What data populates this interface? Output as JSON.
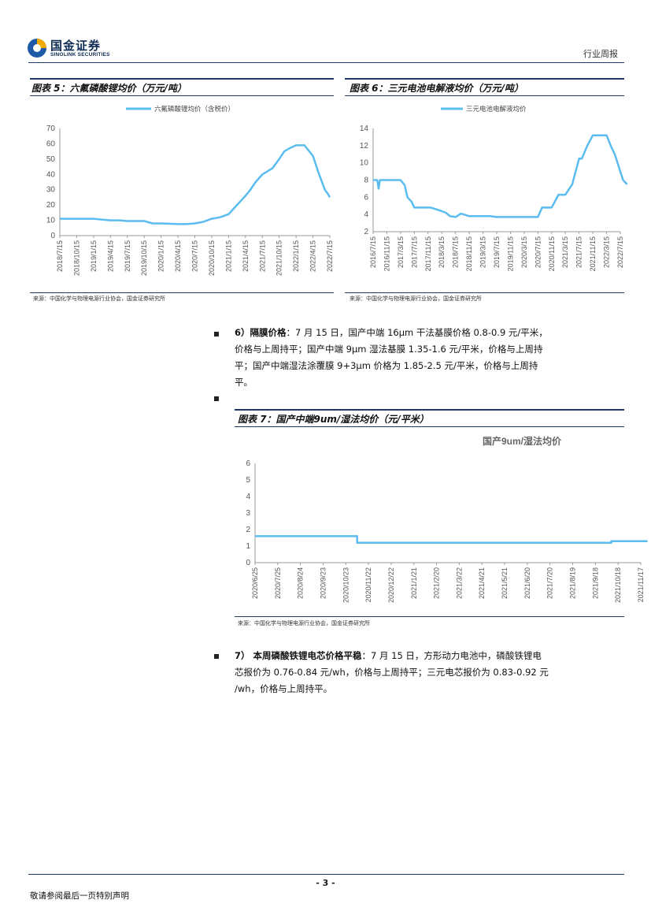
{
  "header": {
    "brand_cn": "国金证券",
    "brand_en": "SINOLINK SECURITIES",
    "report_type": "行业周报"
  },
  "figures": [
    {
      "title": "图表 5：六氟磷酸锂均价（万元/吨）",
      "source": "来源：中国化学与物理电源行业协会，国金证券研究所",
      "chart_data": {
        "type": "line",
        "legend": [
          "六氟磷酸锂均价（含税价）"
        ],
        "color": "#5bbcf0",
        "x_ticks": [
          "2018/7/15",
          "2018/10/15",
          "2019/1/15",
          "2019/4/15",
          "2019/7/15",
          "2019/10/15",
          "2020/1/15",
          "2020/4/15",
          "2020/7/15",
          "2020/10/15",
          "2021/1/15",
          "2021/4/15",
          "2021/7/15",
          "2021/10/15",
          "2022/1/15",
          "2022/4/15",
          "2022/7/15"
        ],
        "y_ticks": [
          0,
          10,
          20,
          30,
          40,
          50,
          60,
          70
        ],
        "ylim": [
          0,
          70
        ],
        "series": [
          {
            "x": [
              0,
              1,
              1.5,
              2,
              3,
              3.5,
              4,
              5,
              5.5,
              6,
              7,
              7.5,
              8,
              8.5,
              9,
              9.5,
              10,
              10.5,
              11,
              11.3,
              11.6,
              12,
              12.3,
              12.6,
              13,
              13.3,
              13.6,
              14,
              14.5,
              15,
              15.3,
              15.5,
              15.7,
              15.9,
              16
            ],
            "y": [
              11,
              11,
              11,
              11,
              10,
              10,
              9.5,
              9.5,
              8,
              8,
              7.5,
              7.5,
              8,
              9,
              11,
              12,
              14,
              20,
              26,
              30,
              35,
              40,
              42,
              44,
              50,
              55,
              57,
              59,
              59,
              52,
              42,
              36,
              30,
              27,
              25
            ]
          }
        ]
      }
    },
    {
      "title": "图表 6：三元电池电解液均价（万元/吨）",
      "source": "来源：中国化学与物理电源行业协会，国金证券研究所",
      "chart_data": {
        "type": "line",
        "legend": [
          "三元电池电解液均价"
        ],
        "color": "#5bbcf0",
        "x_ticks": [
          "2016/7/15",
          "2016/11/15",
          "2017/3/15",
          "2017/7/15",
          "2017/11/15",
          "2018/3/15",
          "2018/7/15",
          "2018/11/15",
          "2019/3/15",
          "2019/7/15",
          "2019/11/15",
          "2020/3/15",
          "2020/7/15",
          "2020/11/15",
          "2021/3/15",
          "2021/7/15",
          "2021/11/15",
          "2022/3/15",
          "2022/7/15"
        ],
        "y_ticks": [
          2,
          4,
          6,
          8,
          10,
          12,
          14
        ],
        "ylim": [
          2,
          14
        ],
        "series": [
          {
            "x": [
              0,
              0.3,
              0.4,
              0.5,
              2,
              2.3,
              2.5,
              2.8,
              3,
              4.2,
              4.8,
              5.3,
              5.6,
              6,
              6.4,
              7,
              8.5,
              9,
              10,
              11,
              12,
              12.3,
              13,
              13.5,
              14,
              14.5,
              15,
              15.2,
              15.6,
              16,
              16.3,
              16.6,
              17,
              17.3,
              17.6,
              18,
              18.2,
              18.5
            ],
            "y": [
              8,
              8,
              7,
              8,
              8,
              7.4,
              6,
              5.5,
              4.8,
              4.8,
              4.5,
              4.2,
              3.8,
              3.7,
              4.1,
              3.8,
              3.8,
              3.7,
              3.7,
              3.7,
              3.7,
              4.8,
              4.8,
              6.3,
              6.3,
              7.5,
              10.5,
              10.5,
              12,
              13.2,
              13.2,
              13.2,
              13.2,
              12,
              11,
              9,
              8,
              7.5
            ]
          }
        ]
      }
    },
    {
      "title": "图表 7：国产中端9um/湿法均价（元/平米）",
      "source": "来源：中国化学与物理电源行业协会，国金证券研究所",
      "chart_data": {
        "type": "line",
        "legend": [
          "国产9um/湿法均价"
        ],
        "color": "#5bbcf0",
        "x_ticks": [
          "2020/6/25",
          "2020/7/25",
          "2020/8/24",
          "2020/9/23",
          "2020/10/23",
          "2020/11/22",
          "2020/12/22",
          "2021/1/21",
          "2021/2/20",
          "2021/3/22",
          "2021/4/21",
          "2021/5/21",
          "2021/6/20",
          "2021/7/20",
          "2021/8/19",
          "2021/9/18",
          "2021/10/18",
          "2021/11/17"
        ],
        "y_ticks": [
          0,
          1,
          2,
          3,
          4,
          5,
          6
        ],
        "ylim": [
          0,
          6
        ],
        "series": [
          {
            "x": [
              0,
              4.5,
              4.5,
              15.7,
              15.7,
              17.3
            ],
            "y": [
              1.6,
              1.6,
              1.2,
              1.2,
              1.3,
              1.3
            ]
          }
        ]
      }
    }
  ],
  "paragraphs": [
    {
      "label": "6）隔膜价格",
      "text_lines": [
        "：7 月 15 日，国产中端 16μm 干法基膜价格 0.8-0.9 元/平米，",
        "价格与上周持平；国产中端 9μm 湿法基膜 1.35-1.6 元/平米，价格与上周持",
        "平；国产中端湿法涂覆膜 9+3μm 价格为 1.85-2.5 元/平米，价格与上周持",
        "平。"
      ]
    },
    {
      "label": "7） 本周磷酸铁锂电芯价格平稳",
      "text_lines": [
        "：7 月 15 日，方形动力电池中，磷酸铁锂电",
        "芯报价为 0.76-0.84 元/wh，价格与上周持平；三元电芯报价为 0.83-0.92 元",
        "/wh，价格与上周持平。"
      ]
    }
  ],
  "footer": {
    "page_number": "- 3 -",
    "disclaimer": "敬请参阅最后一页特别声明"
  }
}
